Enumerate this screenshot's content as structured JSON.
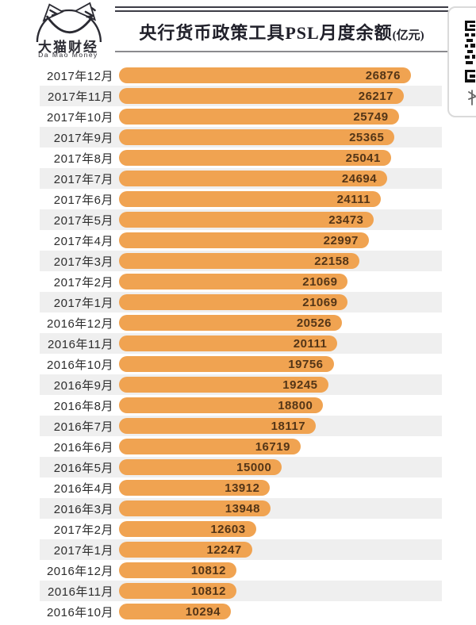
{
  "logo": {
    "name_cn": "大猫财经",
    "name_en": "Da Mao Money"
  },
  "title": {
    "main": "央行货币政策工具PSL月度余额",
    "unit": "(亿元)"
  },
  "chart_data": {
    "type": "bar",
    "orientation": "horizontal",
    "title": "央行货币政策工具PSL月度余额(亿元)",
    "categories": [
      "2017年12月",
      "2017年11月",
      "2017年10月",
      "2017年9月",
      "2017年8月",
      "2017年7月",
      "2017年6月",
      "2017年5月",
      "2017年4月",
      "2017年3月",
      "2017年2月",
      "2017年1月",
      "2016年12月",
      "2016年11月",
      "2016年10月",
      "2016年9月",
      "2016年8月",
      "2016年7月",
      "2016年6月",
      "2016年5月",
      "2016年4月",
      "2016年3月",
      "2017年2月",
      "2017年1月",
      "2016年12月",
      "2016年11月",
      "2016年10月"
    ],
    "values": [
      26876,
      26217,
      25749,
      25365,
      25041,
      24694,
      24111,
      23473,
      22997,
      22158,
      21069,
      21069,
      20526,
      20111,
      19756,
      19245,
      18800,
      18117,
      16719,
      15000,
      13912,
      13948,
      12603,
      12247,
      10812,
      10812,
      10294
    ],
    "xlim": [
      0,
      26876
    ],
    "value_labels_shown": true,
    "grid": false,
    "legend": "none",
    "colors": {
      "bar": "#F0A351",
      "value_text": "#533517",
      "label_text": "#2D2D2D",
      "zebra_stripe": "#EFEFEF",
      "title_rule_dark": "#3C3C46",
      "title_rule_light": "#8A8A8E",
      "logo_ink": "#2B2B33"
    }
  }
}
